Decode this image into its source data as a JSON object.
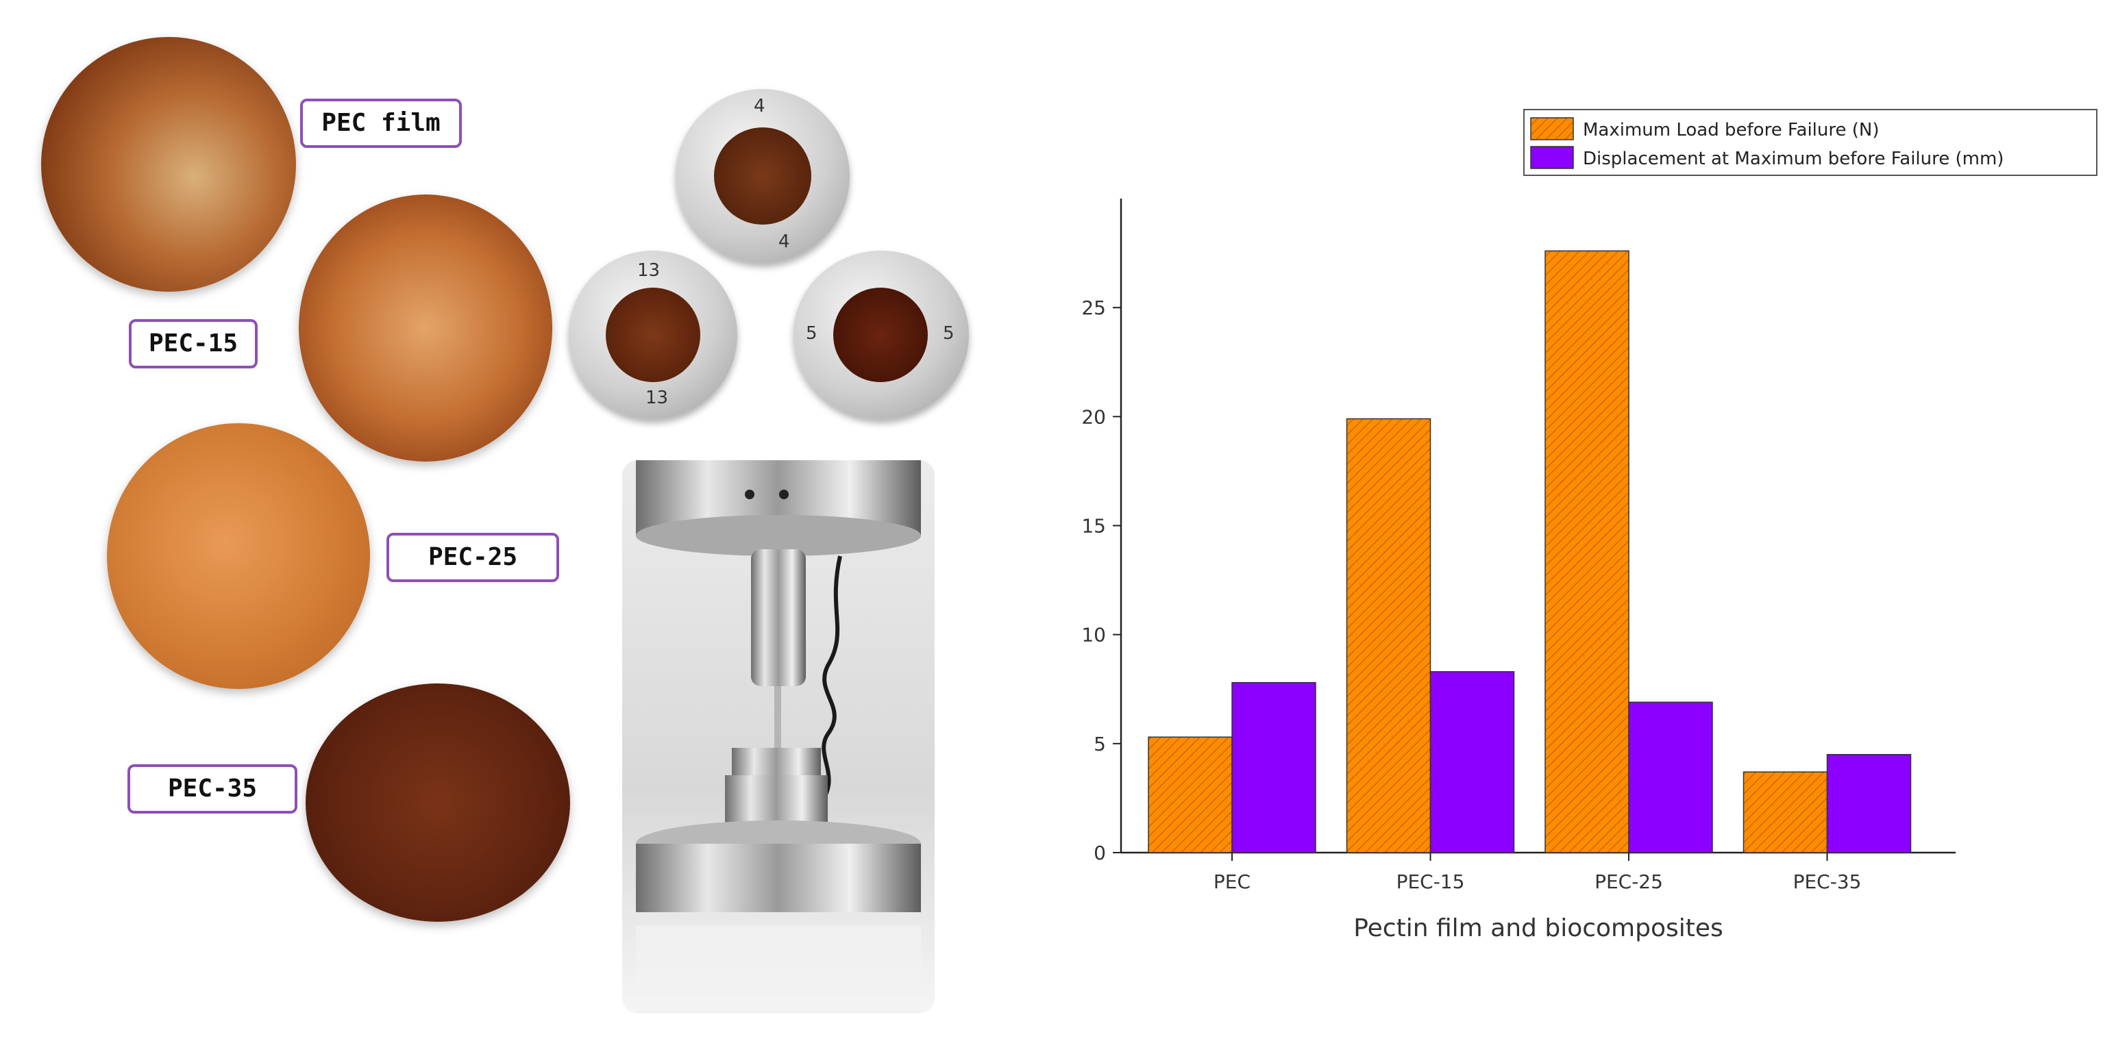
{
  "panel_labels": {
    "pec_film": "PEC film",
    "pec_15": "PEC-15",
    "pec_25": "PEC-25",
    "pec_35": "PEC-35"
  },
  "sample_numbers": {
    "holder_4": "4",
    "holder_13": "13",
    "holder_5": "5"
  },
  "chart_data": {
    "type": "bar",
    "categories": [
      "PEC",
      "PEC-15",
      "PEC-25",
      "PEC-35"
    ],
    "series": [
      {
        "name": "Maximum Load before Failure (N)",
        "values": [
          5.3,
          19.9,
          27.6,
          3.7
        ],
        "color": "#ff8c00",
        "pattern": "hatched"
      },
      {
        "name": "Displacement at Maximum before Failure (mm)",
        "values": [
          7.8,
          8.3,
          6.9,
          4.5
        ],
        "color": "#8b00ff"
      }
    ],
    "title": "",
    "xlabel": "Pectin film and biocomposites",
    "ylabel": "",
    "ylim": [
      0,
      30
    ],
    "yticks": [
      0,
      5,
      10,
      15,
      20,
      25
    ],
    "legend_position": "top",
    "grid": false
  }
}
